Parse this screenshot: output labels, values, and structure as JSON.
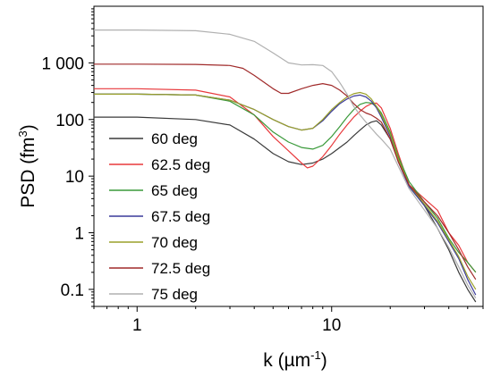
{
  "chart_data": {
    "type": "line",
    "title": "",
    "xlabel": "k (µm",
    "xlabel_sup": "-1",
    "xlabel_close": ")",
    "ylabel": "PSD (fm",
    "ylabel_sup": "3",
    "ylabel_close": ")",
    "xscale": "log",
    "yscale": "log",
    "xlim": [
      0.6,
      60
    ],
    "ylim": [
      0.05,
      10000
    ],
    "xticks": [
      {
        "value": 1,
        "label": "1"
      },
      {
        "value": 10,
        "label": "10"
      }
    ],
    "yticks": [
      {
        "value": 0.1,
        "label": "0.1"
      },
      {
        "value": 1,
        "label": "1"
      },
      {
        "value": 10,
        "label": "10"
      },
      {
        "value": 100,
        "label": "100"
      },
      {
        "value": 1000,
        "label": "1 000"
      }
    ],
    "grid": false,
    "legend_position": "left-center",
    "series": [
      {
        "name": "60 deg",
        "color": "#3a3a3a",
        "x": [
          0.6,
          1.0,
          2.0,
          3.0,
          4.0,
          5.0,
          6.0,
          7.0,
          8.0,
          9.0,
          10.0,
          11.0,
          12.0,
          13.0,
          14.0,
          15.0,
          16.0,
          17.0,
          18.0,
          20.0,
          22.0,
          25.0,
          30.0,
          35.0,
          40.0,
          45.0,
          50.0,
          55.0
        ],
        "y": [
          110,
          110,
          100,
          80,
          45,
          25,
          18,
          16,
          17,
          20,
          25,
          32,
          40,
          52,
          65,
          80,
          90,
          95,
          80,
          45,
          20,
          7,
          3,
          1.2,
          0.5,
          0.2,
          0.1,
          0.06
        ]
      },
      {
        "name": "62.5 deg",
        "color": "#e8393c",
        "x": [
          0.6,
          1.0,
          2.0,
          3.0,
          4.0,
          5.0,
          6.0,
          7.0,
          7.5,
          8.0,
          9.0,
          10.0,
          11.0,
          12.0,
          13.0,
          14.0,
          15.0,
          16.0,
          17.0,
          18.0,
          20.0,
          22.0,
          25.0,
          30.0,
          35.0,
          40.0,
          45.0,
          50.0,
          55.0
        ],
        "y": [
          350,
          350,
          330,
          250,
          120,
          50,
          28,
          17,
          14,
          15,
          22,
          35,
          55,
          80,
          110,
          140,
          170,
          190,
          195,
          160,
          70,
          25,
          7,
          4,
          2.5,
          1,
          0.6,
          0.3,
          0.2
        ]
      },
      {
        "name": "65 deg",
        "color": "#3a9a3a",
        "x": [
          0.6,
          1.0,
          2.0,
          3.0,
          4.0,
          5.0,
          6.0,
          7.0,
          8.0,
          9.0,
          10.0,
          11.0,
          12.0,
          13.0,
          14.0,
          15.0,
          16.0,
          17.0,
          18.0,
          20.0,
          22.0,
          25.0,
          30.0,
          35.0,
          40.0,
          45.0,
          50.0,
          55.0
        ],
        "y": [
          280,
          280,
          270,
          210,
          120,
          60,
          40,
          32,
          30,
          35,
          50,
          75,
          110,
          150,
          185,
          200,
          195,
          170,
          130,
          60,
          22,
          8,
          3.5,
          1.8,
          0.8,
          0.45,
          0.3,
          0.2
        ]
      },
      {
        "name": "67.5 deg",
        "color": "#3a3a9a",
        "x": [
          0.6,
          1.0,
          2.0,
          3.0,
          4.0,
          5.0,
          6.0,
          7.0,
          8.0,
          9.0,
          10.0,
          11.0,
          12.0,
          13.0,
          14.0,
          15.0,
          16.0,
          17.0,
          18.0,
          20.0,
          22.0,
          25.0,
          30.0,
          35.0,
          40.0,
          45.0,
          50.0,
          55.0
        ],
        "y": [
          280,
          280,
          270,
          220,
          150,
          100,
          75,
          65,
          70,
          95,
          140,
          190,
          230,
          260,
          270,
          250,
          210,
          160,
          110,
          50,
          18,
          6.5,
          3,
          1.5,
          0.7,
          0.35,
          0.15,
          0.08
        ]
      },
      {
        "name": "70 deg",
        "color": "#9aa02a",
        "x": [
          0.6,
          1.0,
          2.0,
          3.0,
          4.0,
          5.0,
          6.0,
          7.0,
          8.0,
          9.0,
          10.0,
          11.0,
          12.0,
          13.0,
          14.0,
          15.0,
          16.0,
          17.0,
          18.0,
          20.0,
          22.0,
          25.0,
          30.0,
          35.0,
          40.0,
          45.0,
          50.0,
          55.0
        ],
        "y": [
          280,
          280,
          270,
          220,
          150,
          100,
          75,
          65,
          70,
          100,
          150,
          200,
          250,
          285,
          300,
          280,
          230,
          170,
          120,
          55,
          20,
          7,
          3.2,
          1.6,
          0.75,
          0.38,
          0.17,
          0.1
        ]
      },
      {
        "name": "72.5 deg",
        "color": "#a02a2a",
        "x": [
          0.6,
          1.0,
          2.0,
          3.0,
          3.5,
          4.0,
          5.0,
          5.5,
          6.0,
          7.0,
          8.0,
          9.0,
          10.0,
          11.0,
          12.0,
          13.0,
          14.0,
          15.0,
          16.0,
          17.0,
          18.0,
          20.0,
          22.0,
          25.0,
          30.0,
          35.0,
          40.0,
          45.0,
          50.0,
          55.0
        ],
        "y": [
          950,
          950,
          940,
          900,
          800,
          600,
          350,
          290,
          290,
          350,
          400,
          430,
          400,
          330,
          260,
          190,
          150,
          130,
          120,
          105,
          90,
          45,
          18,
          7,
          3.5,
          2,
          1,
          0.5,
          0.25,
          0.15
        ]
      },
      {
        "name": "75 deg",
        "color": "#b0b0b0",
        "x": [
          0.6,
          1.0,
          2.0,
          3.0,
          4.0,
          5.0,
          6.0,
          7.0,
          8.0,
          9.0,
          10.0,
          11.0,
          12.0,
          13.0,
          14.0,
          15.0,
          16.0,
          17.0,
          18.0,
          20.0,
          22.0,
          25.0,
          30.0,
          35.0,
          40.0,
          45.0,
          50.0,
          55.0
        ],
        "y": [
          3800,
          3800,
          3700,
          3200,
          2400,
          1500,
          1000,
          920,
          930,
          900,
          700,
          450,
          280,
          170,
          120,
          90,
          70,
          55,
          45,
          30,
          15,
          6,
          2.5,
          1.2,
          0.55,
          0.25,
          0.12,
          0.07
        ]
      }
    ]
  }
}
